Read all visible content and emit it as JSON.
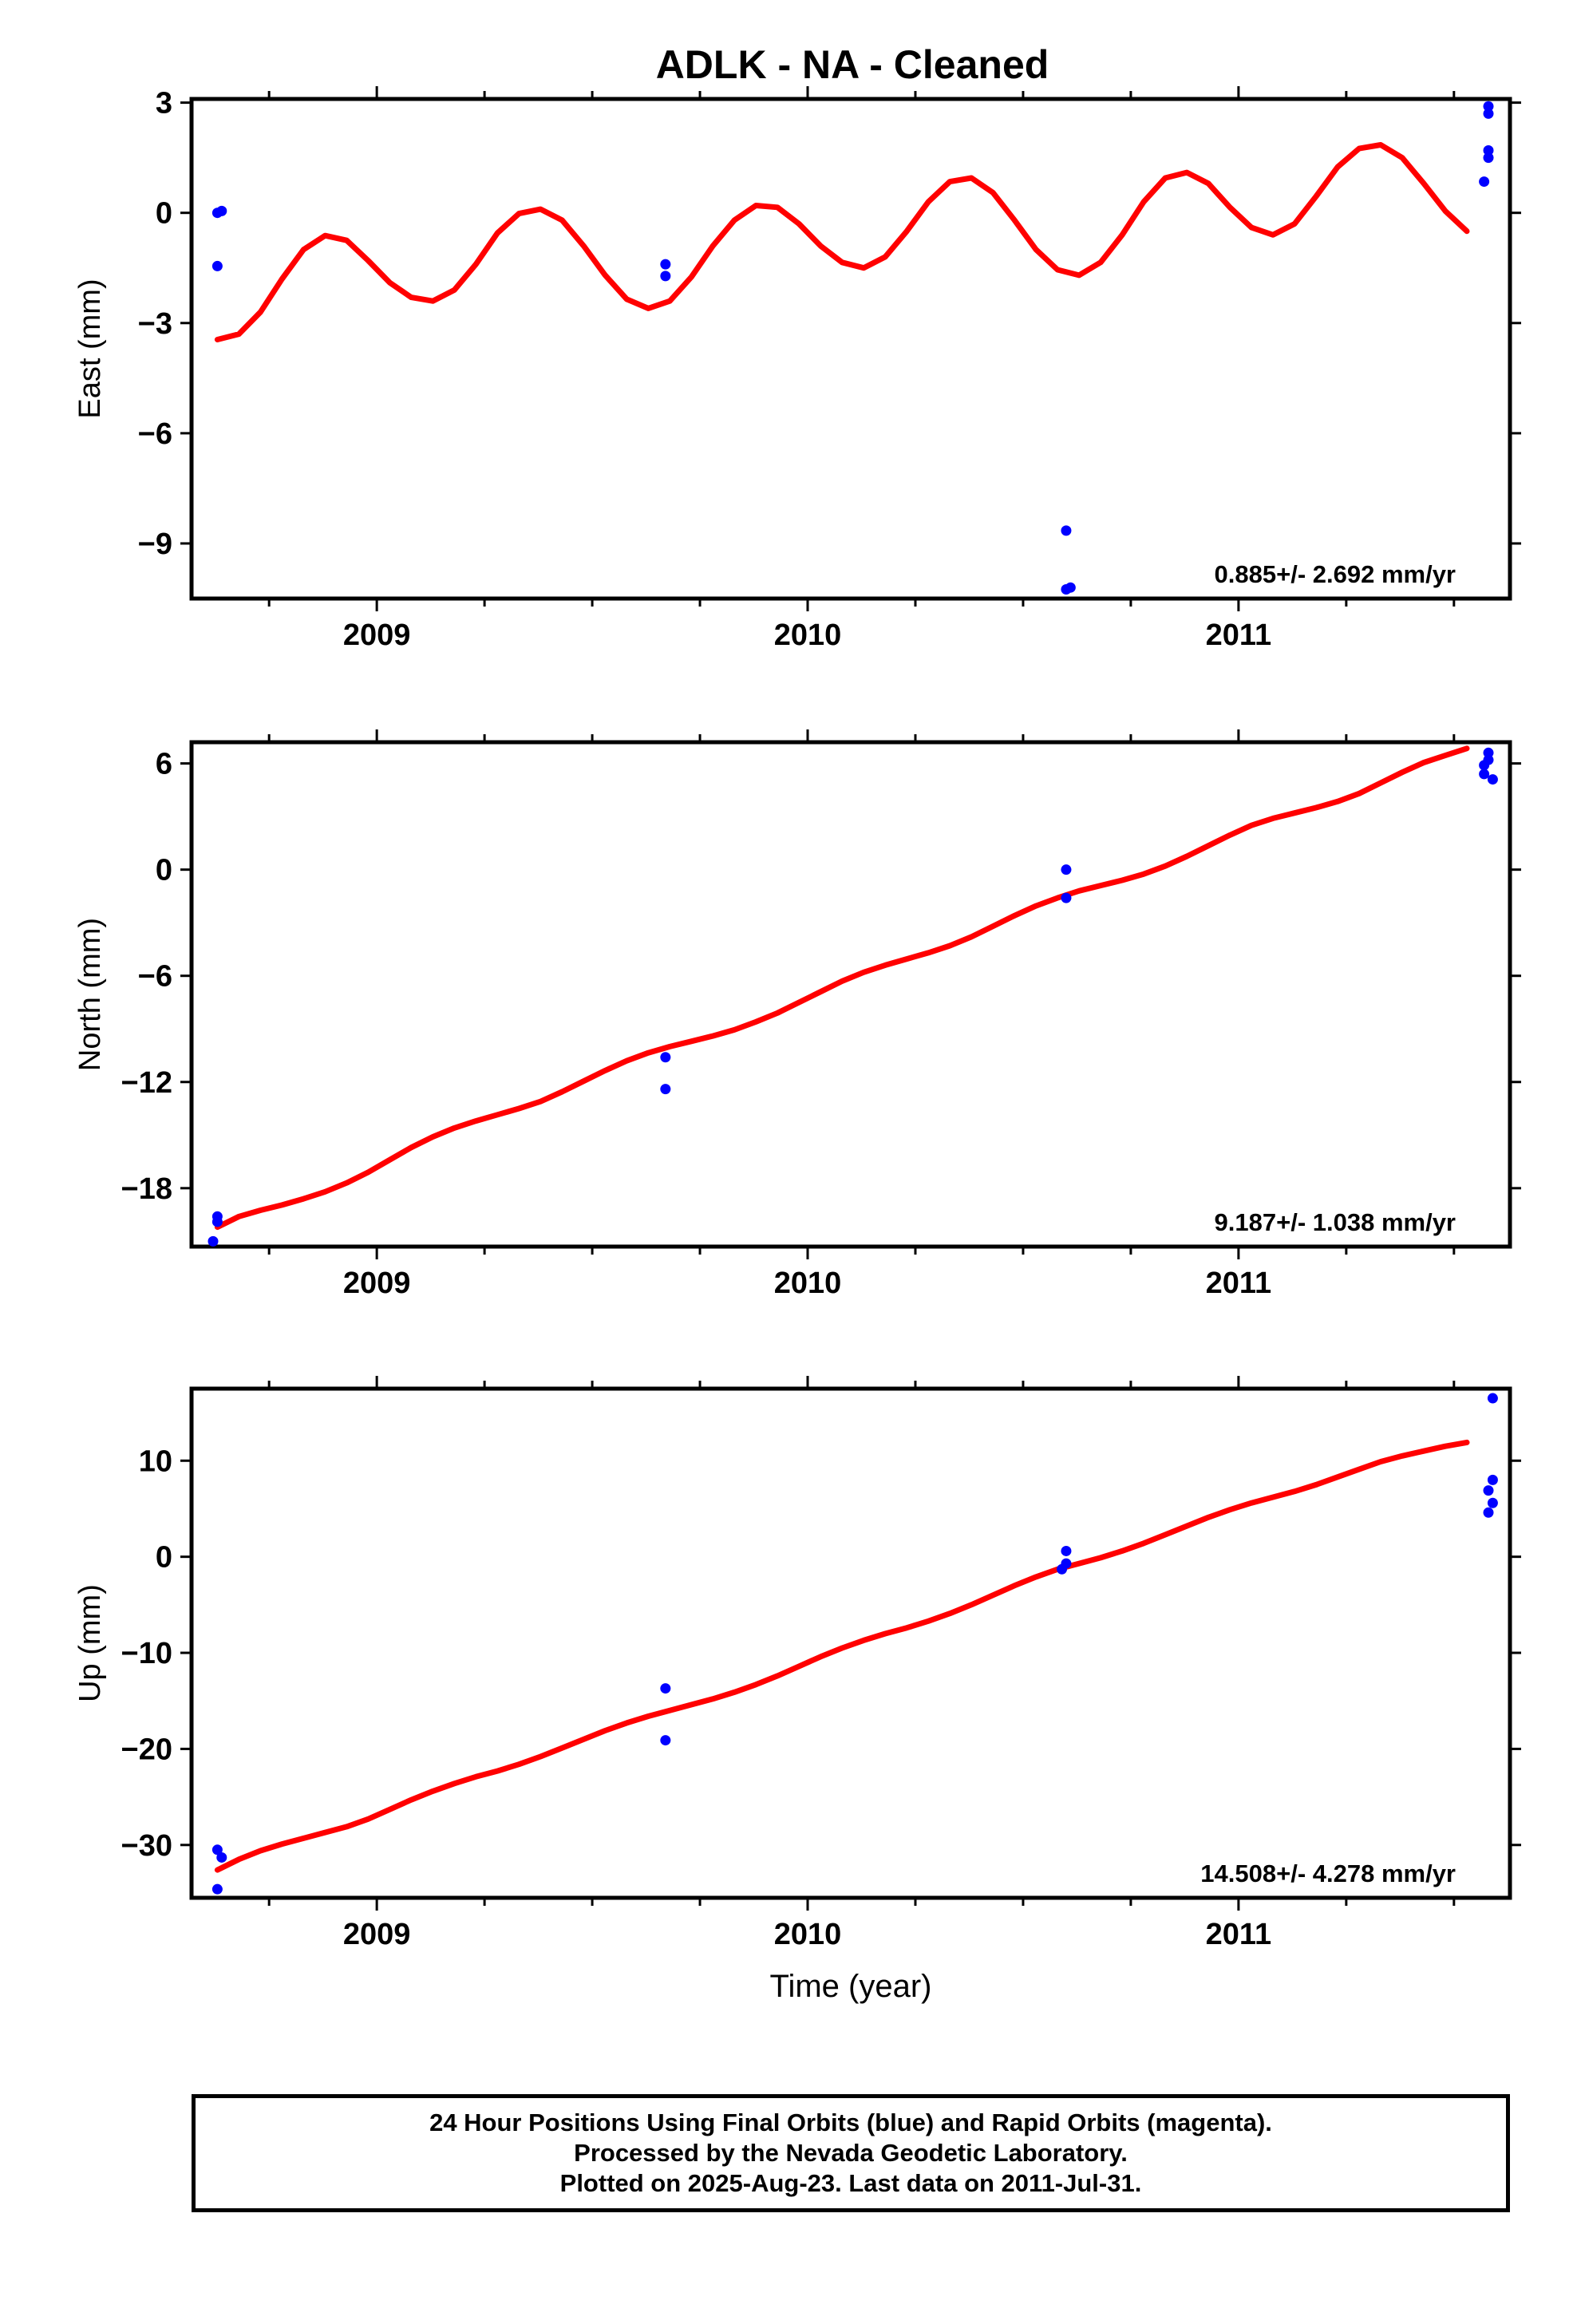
{
  "title": "ADLK  - NA - Cleaned",
  "colors": {
    "data": "#0000ff",
    "model": "#ff0000",
    "axes": "#000000"
  },
  "chart_data": [
    {
      "type": "scatter",
      "ylabel": "East (mm)",
      "xlabel": "",
      "xlim": [
        2008.57,
        2011.63
      ],
      "ylim": [
        -10.5,
        3.1
      ],
      "xticks": [
        2009,
        2010,
        2011
      ],
      "yticks": [
        3,
        0,
        -3,
        -6,
        -9
      ],
      "points": [
        {
          "x": 2008.63,
          "y": 0.0
        },
        {
          "x": 2008.64,
          "y": 0.05
        },
        {
          "x": 2008.63,
          "y": -1.45
        },
        {
          "x": 2009.67,
          "y": -1.4
        },
        {
          "x": 2009.67,
          "y": -1.72
        },
        {
          "x": 2010.6,
          "y": -8.65
        },
        {
          "x": 2010.6,
          "y": -10.25
        },
        {
          "x": 2010.61,
          "y": -10.2
        },
        {
          "x": 2011.58,
          "y": 2.9
        },
        {
          "x": 2011.58,
          "y": 2.7
        },
        {
          "x": 2011.58,
          "y": 1.7
        },
        {
          "x": 2011.58,
          "y": 1.5
        },
        {
          "x": 2011.57,
          "y": 0.85
        }
      ],
      "model": [
        {
          "x": 2008.63,
          "y": -3.45
        },
        {
          "x": 2008.68,
          "y": -3.3
        },
        {
          "x": 2008.73,
          "y": -2.7
        },
        {
          "x": 2008.78,
          "y": -1.8
        },
        {
          "x": 2008.83,
          "y": -1.0
        },
        {
          "x": 2008.88,
          "y": -0.62
        },
        {
          "x": 2008.93,
          "y": -0.75
        },
        {
          "x": 2008.98,
          "y": -1.3
        },
        {
          "x": 2009.03,
          "y": -1.9
        },
        {
          "x": 2009.08,
          "y": -2.3
        },
        {
          "x": 2009.13,
          "y": -2.4
        },
        {
          "x": 2009.18,
          "y": -2.1
        },
        {
          "x": 2009.23,
          "y": -1.4
        },
        {
          "x": 2009.28,
          "y": -0.55
        },
        {
          "x": 2009.33,
          "y": -0.02
        },
        {
          "x": 2009.38,
          "y": 0.1
        },
        {
          "x": 2009.43,
          "y": -0.2
        },
        {
          "x": 2009.48,
          "y": -0.9
        },
        {
          "x": 2009.53,
          "y": -1.7
        },
        {
          "x": 2009.58,
          "y": -2.35
        },
        {
          "x": 2009.63,
          "y": -2.6
        },
        {
          "x": 2009.68,
          "y": -2.4
        },
        {
          "x": 2009.73,
          "y": -1.75
        },
        {
          "x": 2009.78,
          "y": -0.9
        },
        {
          "x": 2009.83,
          "y": -0.2
        },
        {
          "x": 2009.88,
          "y": 0.2
        },
        {
          "x": 2009.93,
          "y": 0.15
        },
        {
          "x": 2009.98,
          "y": -0.3
        },
        {
          "x": 2010.03,
          "y": -0.9
        },
        {
          "x": 2010.08,
          "y": -1.35
        },
        {
          "x": 2010.13,
          "y": -1.5
        },
        {
          "x": 2010.18,
          "y": -1.2
        },
        {
          "x": 2010.23,
          "y": -0.5
        },
        {
          "x": 2010.28,
          "y": 0.3
        },
        {
          "x": 2010.33,
          "y": 0.85
        },
        {
          "x": 2010.38,
          "y": 0.95
        },
        {
          "x": 2010.43,
          "y": 0.55
        },
        {
          "x": 2010.48,
          "y": -0.2
        },
        {
          "x": 2010.53,
          "y": -1.0
        },
        {
          "x": 2010.58,
          "y": -1.55
        },
        {
          "x": 2010.63,
          "y": -1.7
        },
        {
          "x": 2010.68,
          "y": -1.35
        },
        {
          "x": 2010.73,
          "y": -0.6
        },
        {
          "x": 2010.78,
          "y": 0.3
        },
        {
          "x": 2010.83,
          "y": 0.95
        },
        {
          "x": 2010.88,
          "y": 1.1
        },
        {
          "x": 2010.93,
          "y": 0.8
        },
        {
          "x": 2010.98,
          "y": 0.15
        },
        {
          "x": 2011.03,
          "y": -0.4
        },
        {
          "x": 2011.08,
          "y": -0.6
        },
        {
          "x": 2011.13,
          "y": -0.3
        },
        {
          "x": 2011.18,
          "y": 0.45
        },
        {
          "x": 2011.23,
          "y": 1.25
        },
        {
          "x": 2011.28,
          "y": 1.75
        },
        {
          "x": 2011.33,
          "y": 1.85
        },
        {
          "x": 2011.38,
          "y": 1.5
        },
        {
          "x": 2011.43,
          "y": 0.8
        },
        {
          "x": 2011.48,
          "y": 0.05
        },
        {
          "x": 2011.53,
          "y": -0.5
        }
      ],
      "rate_label": "0.885+/- 2.692 mm/yr"
    },
    {
      "type": "scatter",
      "ylabel": "North (mm)",
      "xlabel": "",
      "xlim": [
        2008.57,
        2011.63
      ],
      "ylim": [
        -21.3,
        7.2
      ],
      "xticks": [
        2009,
        2010,
        2011
      ],
      "yticks": [
        6,
        0,
        -6,
        -12,
        -18
      ],
      "points": [
        {
          "x": 2008.63,
          "y": -19.6
        },
        {
          "x": 2008.63,
          "y": -19.9
        },
        {
          "x": 2008.62,
          "y": -21.0
        },
        {
          "x": 2009.67,
          "y": -10.6
        },
        {
          "x": 2009.67,
          "y": -12.4
        },
        {
          "x": 2010.6,
          "y": 0.0
        },
        {
          "x": 2010.6,
          "y": -1.6
        },
        {
          "x": 2011.58,
          "y": 6.6
        },
        {
          "x": 2011.58,
          "y": 6.2
        },
        {
          "x": 2011.57,
          "y": 5.9
        },
        {
          "x": 2011.57,
          "y": 5.4
        },
        {
          "x": 2011.59,
          "y": 5.1
        }
      ],
      "model": [
        {
          "x": 2008.63,
          "y": -20.2
        },
        {
          "x": 2008.68,
          "y": -19.6
        },
        {
          "x": 2008.73,
          "y": -19.25
        },
        {
          "x": 2008.78,
          "y": -18.95
        },
        {
          "x": 2008.83,
          "y": -18.6
        },
        {
          "x": 2008.88,
          "y": -18.2
        },
        {
          "x": 2008.93,
          "y": -17.7
        },
        {
          "x": 2008.98,
          "y": -17.1
        },
        {
          "x": 2009.03,
          "y": -16.4
        },
        {
          "x": 2009.08,
          "y": -15.7
        },
        {
          "x": 2009.13,
          "y": -15.1
        },
        {
          "x": 2009.18,
          "y": -14.6
        },
        {
          "x": 2009.23,
          "y": -14.2
        },
        {
          "x": 2009.28,
          "y": -13.85
        },
        {
          "x": 2009.33,
          "y": -13.5
        },
        {
          "x": 2009.38,
          "y": -13.1
        },
        {
          "x": 2009.43,
          "y": -12.55
        },
        {
          "x": 2009.48,
          "y": -11.95
        },
        {
          "x": 2009.53,
          "y": -11.35
        },
        {
          "x": 2009.58,
          "y": -10.8
        },
        {
          "x": 2009.63,
          "y": -10.35
        },
        {
          "x": 2009.68,
          "y": -10.0
        },
        {
          "x": 2009.73,
          "y": -9.7
        },
        {
          "x": 2009.78,
          "y": -9.4
        },
        {
          "x": 2009.83,
          "y": -9.05
        },
        {
          "x": 2009.88,
          "y": -8.6
        },
        {
          "x": 2009.93,
          "y": -8.1
        },
        {
          "x": 2009.98,
          "y": -7.5
        },
        {
          "x": 2010.03,
          "y": -6.9
        },
        {
          "x": 2010.08,
          "y": -6.3
        },
        {
          "x": 2010.13,
          "y": -5.8
        },
        {
          "x": 2010.18,
          "y": -5.4
        },
        {
          "x": 2010.23,
          "y": -5.05
        },
        {
          "x": 2010.28,
          "y": -4.7
        },
        {
          "x": 2010.33,
          "y": -4.3
        },
        {
          "x": 2010.38,
          "y": -3.8
        },
        {
          "x": 2010.43,
          "y": -3.2
        },
        {
          "x": 2010.48,
          "y": -2.6
        },
        {
          "x": 2010.53,
          "y": -2.05
        },
        {
          "x": 2010.58,
          "y": -1.6
        },
        {
          "x": 2010.63,
          "y": -1.2
        },
        {
          "x": 2010.68,
          "y": -0.9
        },
        {
          "x": 2010.73,
          "y": -0.6
        },
        {
          "x": 2010.78,
          "y": -0.25
        },
        {
          "x": 2010.83,
          "y": 0.2
        },
        {
          "x": 2010.88,
          "y": 0.75
        },
        {
          "x": 2010.93,
          "y": 1.35
        },
        {
          "x": 2010.98,
          "y": 1.95
        },
        {
          "x": 2011.03,
          "y": 2.5
        },
        {
          "x": 2011.08,
          "y": 2.9
        },
        {
          "x": 2011.13,
          "y": 3.2
        },
        {
          "x": 2011.18,
          "y": 3.5
        },
        {
          "x": 2011.23,
          "y": 3.85
        },
        {
          "x": 2011.28,
          "y": 4.3
        },
        {
          "x": 2011.33,
          "y": 4.9
        },
        {
          "x": 2011.38,
          "y": 5.5
        },
        {
          "x": 2011.43,
          "y": 6.05
        },
        {
          "x": 2011.48,
          "y": 6.45
        },
        {
          "x": 2011.53,
          "y": 6.85
        }
      ],
      "rate_label": "9.187+/- 1.038 mm/yr"
    },
    {
      "type": "scatter",
      "ylabel": "Up (mm)",
      "xlabel": "Time (year)",
      "xlim": [
        2008.57,
        2011.63
      ],
      "ylim": [
        -35.5,
        17.5
      ],
      "xticks": [
        2009,
        2010,
        2011
      ],
      "yticks": [
        10,
        0,
        -10,
        -20,
        -30
      ],
      "points": [
        {
          "x": 2008.63,
          "y": -30.5
        },
        {
          "x": 2008.64,
          "y": -31.3
        },
        {
          "x": 2008.63,
          "y": -34.6
        },
        {
          "x": 2009.67,
          "y": -13.7
        },
        {
          "x": 2009.67,
          "y": -19.1
        },
        {
          "x": 2010.6,
          "y": 0.6
        },
        {
          "x": 2010.6,
          "y": -0.7
        },
        {
          "x": 2010.59,
          "y": -1.3
        },
        {
          "x": 2011.59,
          "y": 16.5
        },
        {
          "x": 2011.59,
          "y": 8.0
        },
        {
          "x": 2011.58,
          "y": 6.9
        },
        {
          "x": 2011.59,
          "y": 5.6
        },
        {
          "x": 2011.58,
          "y": 4.6
        }
      ],
      "model": [
        {
          "x": 2008.63,
          "y": -32.6
        },
        {
          "x": 2008.68,
          "y": -31.5
        },
        {
          "x": 2008.73,
          "y": -30.6
        },
        {
          "x": 2008.78,
          "y": -29.9
        },
        {
          "x": 2008.83,
          "y": -29.3
        },
        {
          "x": 2008.88,
          "y": -28.7
        },
        {
          "x": 2008.93,
          "y": -28.1
        },
        {
          "x": 2008.98,
          "y": -27.3
        },
        {
          "x": 2009.03,
          "y": -26.3
        },
        {
          "x": 2009.08,
          "y": -25.3
        },
        {
          "x": 2009.13,
          "y": -24.4
        },
        {
          "x": 2009.18,
          "y": -23.6
        },
        {
          "x": 2009.23,
          "y": -22.9
        },
        {
          "x": 2009.28,
          "y": -22.3
        },
        {
          "x": 2009.33,
          "y": -21.6
        },
        {
          "x": 2009.38,
          "y": -20.8
        },
        {
          "x": 2009.43,
          "y": -19.9
        },
        {
          "x": 2009.48,
          "y": -19.0
        },
        {
          "x": 2009.53,
          "y": -18.1
        },
        {
          "x": 2009.58,
          "y": -17.3
        },
        {
          "x": 2009.63,
          "y": -16.6
        },
        {
          "x": 2009.68,
          "y": -16.0
        },
        {
          "x": 2009.73,
          "y": -15.4
        },
        {
          "x": 2009.78,
          "y": -14.8
        },
        {
          "x": 2009.83,
          "y": -14.1
        },
        {
          "x": 2009.88,
          "y": -13.3
        },
        {
          "x": 2009.93,
          "y": -12.4
        },
        {
          "x": 2009.98,
          "y": -11.4
        },
        {
          "x": 2010.03,
          "y": -10.4
        },
        {
          "x": 2010.08,
          "y": -9.5
        },
        {
          "x": 2010.13,
          "y": -8.7
        },
        {
          "x": 2010.18,
          "y": -8.0
        },
        {
          "x": 2010.23,
          "y": -7.4
        },
        {
          "x": 2010.28,
          "y": -6.7
        },
        {
          "x": 2010.33,
          "y": -5.9
        },
        {
          "x": 2010.38,
          "y": -5.0
        },
        {
          "x": 2010.43,
          "y": -4.0
        },
        {
          "x": 2010.48,
          "y": -3.0
        },
        {
          "x": 2010.53,
          "y": -2.1
        },
        {
          "x": 2010.58,
          "y": -1.3
        },
        {
          "x": 2010.63,
          "y": -0.7
        },
        {
          "x": 2010.68,
          "y": -0.1
        },
        {
          "x": 2010.73,
          "y": 0.6
        },
        {
          "x": 2010.78,
          "y": 1.4
        },
        {
          "x": 2010.83,
          "y": 2.3
        },
        {
          "x": 2010.88,
          "y": 3.2
        },
        {
          "x": 2010.93,
          "y": 4.1
        },
        {
          "x": 2010.98,
          "y": 4.9
        },
        {
          "x": 2011.03,
          "y": 5.6
        },
        {
          "x": 2011.08,
          "y": 6.2
        },
        {
          "x": 2011.13,
          "y": 6.8
        },
        {
          "x": 2011.18,
          "y": 7.5
        },
        {
          "x": 2011.23,
          "y": 8.3
        },
        {
          "x": 2011.28,
          "y": 9.1
        },
        {
          "x": 2011.33,
          "y": 9.9
        },
        {
          "x": 2011.38,
          "y": 10.5
        },
        {
          "x": 2011.43,
          "y": 11.0
        },
        {
          "x": 2011.48,
          "y": 11.5
        },
        {
          "x": 2011.53,
          "y": 11.9
        }
      ],
      "rate_label": "14.508+/- 4.278 mm/yr"
    }
  ],
  "footer_note": [
    "24 Hour Positions Using Final Orbits (blue) and Rapid Orbits (magenta).",
    "Processed by the Nevada Geodetic Laboratory.",
    "Plotted on 2025-Aug-23. Last data on 2011-Jul-31."
  ]
}
